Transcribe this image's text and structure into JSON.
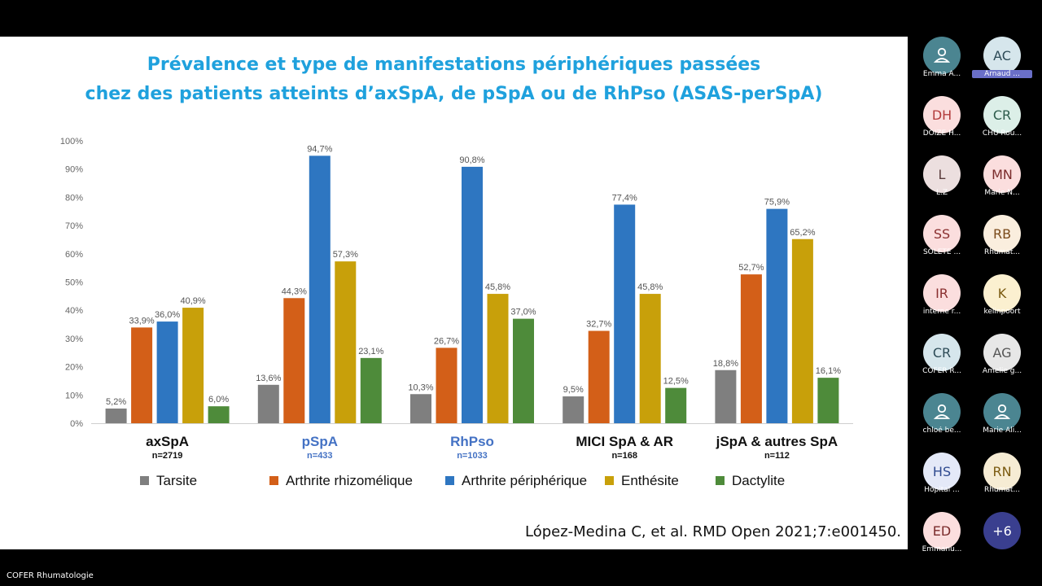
{
  "slide": {
    "title_line1": "Prévalence et type de manifestations périphériques passées",
    "title_line2": "chez des patients atteints d’axSpA, de pSpA ou de RhPso (ASAS-perSpA)",
    "citation": "López-Medina C, et al. RMD Open 2021;7:e001450."
  },
  "chart_data": {
    "type": "bar",
    "categories": [
      "axSpA",
      "pSpA",
      "RhPso",
      "MICI SpA & AR",
      "jSpA & autres SpA"
    ],
    "category_n": [
      "n=2719",
      "n=433",
      "n=1033",
      "n=168",
      "n=112"
    ],
    "highlight_categories": [
      "pSpA",
      "RhPso"
    ],
    "y_ticks": [
      "0%",
      "10%",
      "20%",
      "30%",
      "40%",
      "50%",
      "60%",
      "70%",
      "80%",
      "90%",
      "100%"
    ],
    "ylim": [
      0,
      100
    ],
    "grid": false,
    "legend_position": "bottom",
    "series": [
      {
        "name": "Tarsite",
        "color": "#7f7f7f",
        "values": [
          5.2,
          13.6,
          10.3,
          9.5,
          18.8
        ],
        "labels": [
          "5,2%",
          "13,6%",
          "10,3%",
          "9,5%",
          "18,8%"
        ]
      },
      {
        "name": "Arthrite rhizomélique",
        "color": "#d35f18",
        "values": [
          33.9,
          44.3,
          26.7,
          32.7,
          52.7
        ],
        "labels": [
          "33,9%",
          "44,3%",
          "26,7%",
          "32,7%",
          "52,7%"
        ]
      },
      {
        "name": "Arthrite périphérique",
        "color": "#2e76c1",
        "values": [
          36.0,
          94.7,
          90.8,
          77.4,
          75.9
        ],
        "labels": [
          "36,0%",
          "94,7%",
          "90,8%",
          "77,4%",
          "75,9%"
        ]
      },
      {
        "name": "Enthésite",
        "color": "#c8a00a",
        "values": [
          40.9,
          57.3,
          45.8,
          45.8,
          65.2
        ],
        "labels": [
          "40,9%",
          "57,3%",
          "45,8%",
          "45,8%",
          "65,2%"
        ]
      },
      {
        "name": "Dactylite",
        "color": "#4e8b3a",
        "values": [
          6.0,
          23.1,
          37.0,
          12.5,
          16.1
        ],
        "labels": [
          "6,0%",
          "23,1%",
          "37,0%",
          "12,5%",
          "16,1%"
        ]
      }
    ]
  },
  "participants": [
    {
      "initials": "",
      "name": "Emma A...",
      "bg": "#4b8591",
      "fg": "#ffffff",
      "icon": "person-icon"
    },
    {
      "initials": "AC",
      "name": "Arnaud ...",
      "bg": "#d6e6ec",
      "fg": "#2d4b57",
      "highlight": true
    },
    {
      "initials": "DH",
      "name": "DOIZE H...",
      "bg": "#fbdede",
      "fg": "#b33b3b"
    },
    {
      "initials": "CR",
      "name": "CHU Rou...",
      "bg": "#dcefe8",
      "fg": "#2d5b4b"
    },
    {
      "initials": "L",
      "name": "L.Z",
      "bg": "#ecdfdf",
      "fg": "#5a3c3c"
    },
    {
      "initials": "MN",
      "name": "Marie N...",
      "bg": "#fbdede",
      "fg": "#7a2b2b"
    },
    {
      "initials": "SS",
      "name": "SOLETE ...",
      "bg": "#fbdede",
      "fg": "#8a3030"
    },
    {
      "initials": "RB",
      "name": "Rhumat...",
      "bg": "#faeede",
      "fg": "#7a4a1a"
    },
    {
      "initials": "IR",
      "name": "interne r...",
      "bg": "#fbdede",
      "fg": "#8a3030"
    },
    {
      "initials": "K",
      "name": "kelinpoort",
      "bg": "#fbf0d0",
      "fg": "#7a5a10"
    },
    {
      "initials": "CR",
      "name": "COFER R...",
      "bg": "#d6e6ec",
      "fg": "#2d4b57"
    },
    {
      "initials": "AG",
      "name": "Amelie g...",
      "bg": "#e7e7e7",
      "fg": "#555555"
    },
    {
      "initials": "",
      "name": "chloé be...",
      "bg": "#4b8591",
      "fg": "#ffffff",
      "icon": "person-icon"
    },
    {
      "initials": "",
      "name": "Marie Ali...",
      "bg": "#4b8591",
      "fg": "#ffffff",
      "icon": "person-icon"
    },
    {
      "initials": "HS",
      "name": "Hôpital ...",
      "bg": "#e4e9f8",
      "fg": "#2f4a8f"
    },
    {
      "initials": "RN",
      "name": "Rhumat...",
      "bg": "#f6ecd4",
      "fg": "#7a5a10"
    },
    {
      "initials": "ED",
      "name": "Emmanu...",
      "bg": "#fbdede",
      "fg": "#7a2b2b"
    },
    {
      "initials": "+6",
      "name": "",
      "bg": "#3a3f8f",
      "fg": "#ffffff"
    }
  ],
  "app": {
    "footer_label": "COFER Rhumatologie"
  }
}
